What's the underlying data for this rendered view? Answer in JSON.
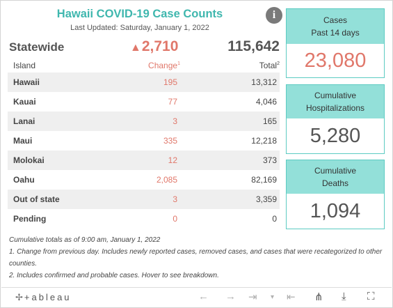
{
  "title": "Hawaii COVID-19 Case Counts",
  "last_updated": "Last Updated: Saturday, January 1, 2022",
  "statewide": {
    "label": "Statewide",
    "change_arrow": "▲",
    "change": "2,710",
    "total": "115,642"
  },
  "columns": {
    "island": "Island",
    "change": "Change",
    "change_sup": "1",
    "total": "Total",
    "total_sup": "2"
  },
  "rows": [
    {
      "island": "Hawaii",
      "change": "195",
      "total": "13,312"
    },
    {
      "island": "Kauai",
      "change": "77",
      "total": "4,046"
    },
    {
      "island": "Lanai",
      "change": "3",
      "total": "165"
    },
    {
      "island": "Maui",
      "change": "335",
      "total": "12,218"
    },
    {
      "island": "Molokai",
      "change": "12",
      "total": "373"
    },
    {
      "island": "Oahu",
      "change": "2,085",
      "total": "82,169"
    },
    {
      "island": "Out of state",
      "change": "3",
      "total": "3,359"
    },
    {
      "island": "Pending",
      "change": "0",
      "total": "0"
    }
  ],
  "cards": {
    "cases": {
      "line1": "Cases",
      "line2": "Past 14 days",
      "value": "23,080"
    },
    "hospitalizations": {
      "line1": "Cumulative",
      "line2": "Hospitalizations",
      "value": "5,280"
    },
    "deaths": {
      "line1": "Cumulative",
      "line2": "Deaths",
      "value": "1,094"
    }
  },
  "notes": [
    "Cumulative totals as of 9:00 am, January 1, 2022",
    "1. Change from previous day. Includes newly reported cases, removed cases, and cases that were recategorized to other counties.",
    "2. Includes confirmed and probable cases. Hover to see breakdown."
  ],
  "toolbar": {
    "logo": "+ableau",
    "logo_mark": "✢",
    "undo": "←",
    "redo": "→",
    "revert": "⇥",
    "revert_caret": "▾",
    "reset": "⇤",
    "share": "⋔",
    "download": "⤓",
    "fullscreen": "⛶"
  },
  "colors": {
    "title": "#3fb7ae",
    "accent": "#e0776a",
    "card_header": "#93e0d9",
    "row_alt": "#efefef"
  },
  "icons": [
    "info-icon",
    "tableau-logo",
    "undo-icon",
    "redo-icon",
    "revert-icon",
    "reset-icon",
    "share-icon",
    "download-icon",
    "fullscreen-icon"
  ]
}
